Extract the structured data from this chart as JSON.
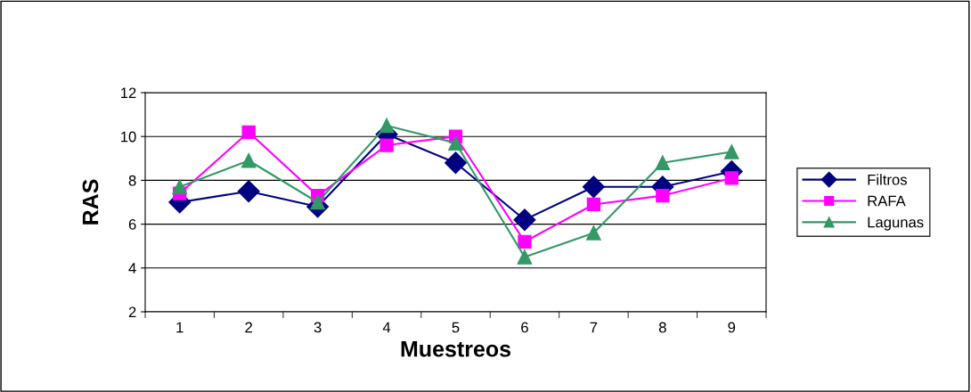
{
  "chart_data": {
    "type": "line",
    "xlabel": "Muestreos",
    "ylabel": "RAS",
    "categories": [
      "1",
      "2",
      "3",
      "4",
      "5",
      "6",
      "7",
      "8",
      "9"
    ],
    "series": [
      {
        "name": "Filtros",
        "color": "#000080",
        "marker": "diamond",
        "values": [
          7.0,
          7.5,
          6.8,
          10.1,
          8.8,
          6.2,
          7.7,
          7.7,
          8.4
        ]
      },
      {
        "name": "RAFA",
        "color": "#ff00ff",
        "marker": "square",
        "values": [
          7.4,
          10.2,
          7.3,
          9.6,
          10.0,
          5.2,
          6.9,
          7.3,
          8.1
        ]
      },
      {
        "name": "Lagunas",
        "color": "#339966",
        "marker": "triangle",
        "values": [
          7.7,
          8.9,
          7.0,
          10.5,
          9.7,
          4.5,
          5.6,
          8.8,
          9.3
        ]
      }
    ],
    "ylim": [
      2,
      12
    ],
    "yticks": [
      2,
      4,
      6,
      8,
      10,
      12
    ],
    "grid": "y",
    "legend": "right"
  }
}
